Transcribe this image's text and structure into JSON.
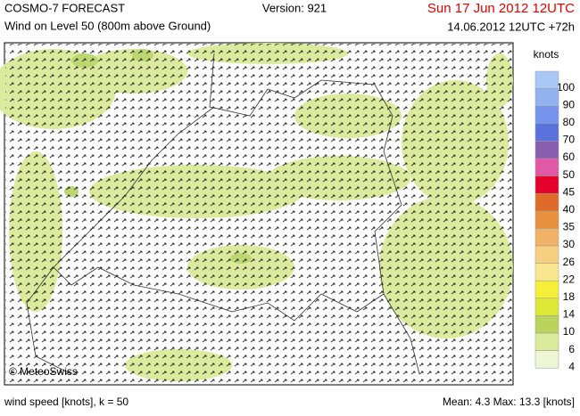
{
  "header": {
    "title": "COSMO-7 FORECAST",
    "subtitle": "Wind on Level 50 (800m above Ground)",
    "version": "Version: 921",
    "valid_time": "Sun 17 Jun 2012 12UTC",
    "run_time": "14.06.2012 12UTC +72h"
  },
  "map": {
    "credit": "© MeteoSwiss"
  },
  "legend": {
    "unit": "knots",
    "levels": [
      {
        "value": 100,
        "color": "#a9c8f5"
      },
      {
        "value": 90,
        "color": "#93b3f0"
      },
      {
        "value": 80,
        "color": "#7595ec"
      },
      {
        "value": 70,
        "color": "#5a72dc"
      },
      {
        "value": 60,
        "color": "#8a5eae"
      },
      {
        "value": 50,
        "color": "#e257a6"
      },
      {
        "value": 45,
        "color": "#e4002b"
      },
      {
        "value": 40,
        "color": "#e06a2a"
      },
      {
        "value": 35,
        "color": "#e8913f"
      },
      {
        "value": 30,
        "color": "#f0b266"
      },
      {
        "value": 26,
        "color": "#f6cf80"
      },
      {
        "value": 22,
        "color": "#f8e78e"
      },
      {
        "value": 18,
        "color": "#f6ef3a"
      },
      {
        "value": 14,
        "color": "#dde836"
      },
      {
        "value": 10,
        "color": "#b9d35c"
      },
      {
        "value": 6,
        "color": "#d9ea9a"
      },
      {
        "value": 4,
        "color": "#eef6d6"
      }
    ]
  },
  "footer": {
    "left": "wind speed [knots], k = 50",
    "stats": "Mean:   4.3  Max:   13.3 [knots]"
  }
}
